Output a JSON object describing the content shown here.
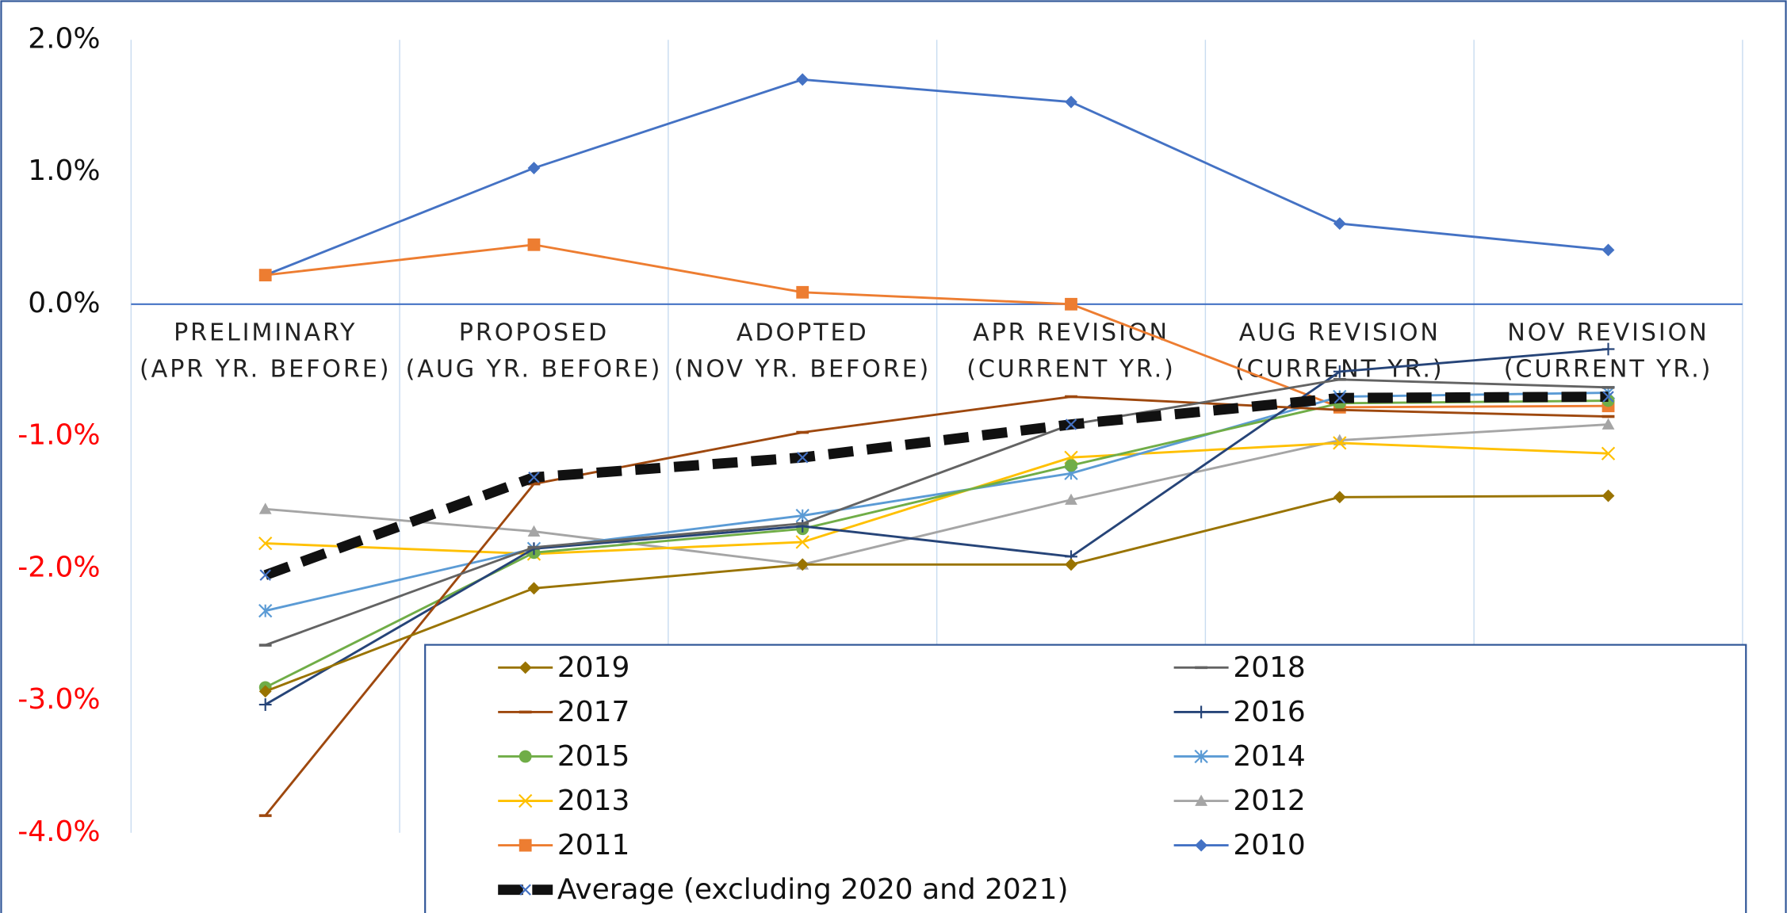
{
  "chart_data": {
    "type": "line",
    "categories": [
      [
        "PRELIMINARY",
        "(APR YR. BEFORE)"
      ],
      [
        "PROPOSED",
        "(AUG YR. BEFORE)"
      ],
      [
        "ADOPTED",
        "(NOV YR. BEFORE)"
      ],
      [
        "APR REVISION",
        "(CURRENT YR.)"
      ],
      [
        "AUG REVISION",
        "(CURRENT YR.)"
      ],
      [
        "NOV REVISION",
        "(CURRENT YR.)"
      ]
    ],
    "ylim": [
      -4,
      2
    ],
    "yticks": [
      {
        "value": 2,
        "label": "2.0%"
      },
      {
        "value": 1,
        "label": "1.0%"
      },
      {
        "value": 0,
        "label": "0.0%"
      },
      {
        "value": -1,
        "label": "-1.0%"
      },
      {
        "value": -2,
        "label": "-2.0%"
      },
      {
        "value": -3,
        "label": "-3.0%"
      },
      {
        "value": -4,
        "label": "-4.0%"
      }
    ],
    "negative_tick_color": "#ff0000",
    "grid": true,
    "series": [
      {
        "name": "2019",
        "color": "#997300",
        "marker": "diamond",
        "values": [
          -2.93,
          -2.15,
          -1.97,
          -1.97,
          -1.46,
          -1.45
        ]
      },
      {
        "name": "2018",
        "color": "#636363",
        "marker": "dash",
        "values": [
          -2.58,
          -1.84,
          -1.66,
          -0.91,
          -0.57,
          -0.63
        ]
      },
      {
        "name": "2017",
        "color": "#9e480e",
        "marker": "dash",
        "values": [
          -3.87,
          -1.36,
          -0.97,
          -0.7,
          -0.8,
          -0.85
        ]
      },
      {
        "name": "2016",
        "color": "#264478",
        "marker": "plus",
        "values": [
          -3.03,
          -1.85,
          -1.68,
          -1.91,
          -0.51,
          -0.34
        ]
      },
      {
        "name": "2015",
        "color": "#70ad47",
        "marker": "circle",
        "values": [
          -2.9,
          -1.88,
          -1.7,
          -1.22,
          -0.75,
          -0.73
        ]
      },
      {
        "name": "2014",
        "color": "#5b9bd5",
        "marker": "star",
        "values": [
          -2.32,
          -1.85,
          -1.6,
          -1.28,
          -0.7,
          -0.67
        ]
      },
      {
        "name": "2013",
        "color": "#ffc000",
        "marker": "x",
        "values": [
          -1.81,
          -1.89,
          -1.8,
          -1.16,
          -1.05,
          -1.13
        ]
      },
      {
        "name": "2012",
        "color": "#a5a5a5",
        "marker": "triangle",
        "values": [
          -1.55,
          -1.72,
          -1.97,
          -1.48,
          -1.03,
          -0.91
        ]
      },
      {
        "name": "2011",
        "color": "#ed7d31",
        "marker": "square",
        "values": [
          0.22,
          0.45,
          0.09,
          0.0,
          -0.78,
          -0.77
        ]
      },
      {
        "name": "2010",
        "color": "#4472c4",
        "marker": "diamond",
        "values": [
          0.22,
          1.03,
          1.7,
          1.53,
          0.61,
          0.41
        ]
      },
      {
        "name": "Average (excluding 2020 and 2021)",
        "color": "#111111",
        "marker": "x",
        "dashed": true,
        "values": [
          -2.05,
          -1.31,
          -1.16,
          -0.91,
          -0.71,
          -0.7
        ]
      }
    ]
  }
}
